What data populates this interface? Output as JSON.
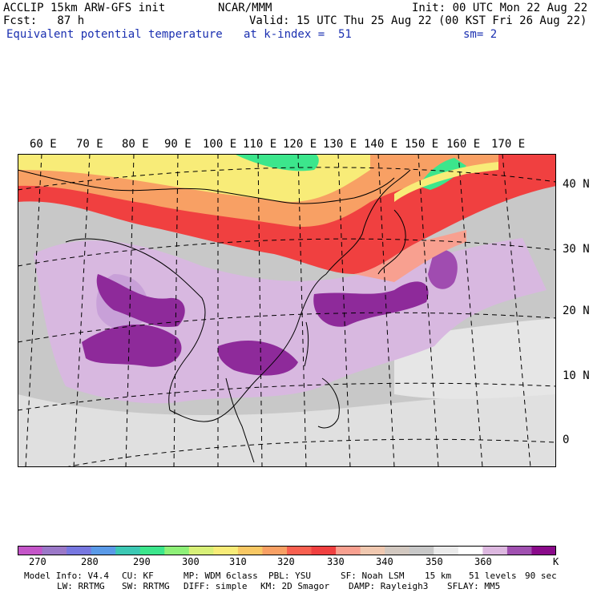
{
  "header": {
    "title": "ACCLIP 15km ARW-GFS init",
    "org": "NCAR/MMM",
    "init": "Init: 00 UTC Mon 22 Aug 22",
    "fcst": "Fcst:   87 h",
    "valid": "Valid: 15 UTC Thu 25 Aug 22 (00 KST Fri 26 Aug 22)",
    "field": "Equivalent potential temperature",
    "level": "at k-index =  51",
    "smooth": "sm= 2"
  },
  "map": {
    "lon_labels": [
      "60 E",
      "70 E",
      "80 E",
      "90 E",
      "100 E",
      "110 E",
      "120 E",
      "130 E",
      "140 E",
      "150 E",
      "160 E",
      "170 E"
    ],
    "lat_labels": [
      "40 N",
      "30 N",
      "20 N",
      "10 N",
      "0"
    ]
  },
  "colorbar": {
    "unit": "K",
    "ticks": [
      "270",
      "280",
      "290",
      "300",
      "310",
      "320",
      "330",
      "340",
      "350",
      "360"
    ],
    "colors": [
      "#c455c8",
      "#9b78c8",
      "#7777e0",
      "#5a9ae8",
      "#3cc8b4",
      "#3ce68c",
      "#8ef078",
      "#d8f078",
      "#f8ec78",
      "#f8c864",
      "#f8a064",
      "#f86050",
      "#f04040",
      "#f8a090",
      "#f0c8b0",
      "#d2c8c0",
      "#c8c8c8",
      "#ebebeb",
      "#ffffff",
      "#ddb8e0",
      "#a050b0",
      "#8a0a8a"
    ]
  },
  "footer": {
    "line1": [
      "Model Info: V4.4",
      "CU: KF",
      "MP: WDM 6class",
      "PBL: YSU",
      "SF: Noah LSM",
      "15 km",
      "51 levels",
      "90 sec"
    ],
    "line2": [
      "LW: RRTMG",
      "SW: RRTMG",
      "DIFF: simple",
      "KM: 2D Smagor",
      "DAMP: Rayleigh3",
      "SFLAY: MM5"
    ]
  }
}
